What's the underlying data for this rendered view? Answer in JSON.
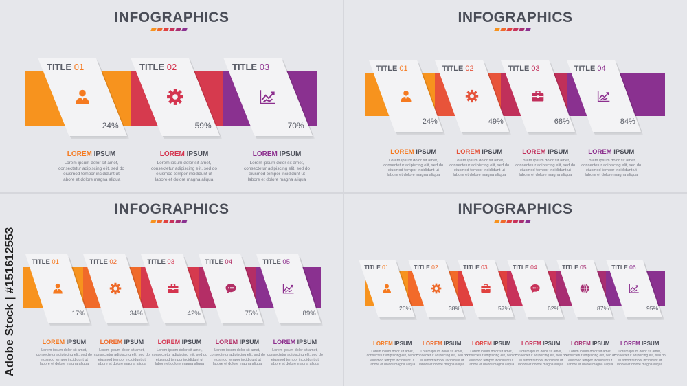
{
  "panels": [
    {
      "title": "INFOGRAPHICS",
      "items": [
        {
          "title": "TITLE",
          "num": "01",
          "pct": "24%",
          "color": "#f7931e",
          "label_color": "#f57a20",
          "icon": "user-icon",
          "label1": "LOREM",
          "label2": "IPSUM",
          "body": "Lorem ipsum dolor sit amet,\nconsectetur adipiscing elit, sed do\neiusmod tempor incididunt ut\nlabore et dolore magna aliqua"
        },
        {
          "title": "TITLE",
          "num": "02",
          "pct": "59%",
          "color": "#d63a4e",
          "label_color": "#d4344f",
          "icon": "gear-icon",
          "label1": "LOREM",
          "label2": "IPSUM",
          "body": "Lorem ipsum dolor sit amet,\nconsectetur adipiscing elit, sed do\neiusmod tempor incididunt ut\nlabore et dolore magna aliqua"
        },
        {
          "title": "TITLE",
          "num": "03",
          "pct": "70%",
          "color": "#8a3190",
          "label_color": "#8c2f8e",
          "icon": "chart-icon",
          "label1": "LOREM",
          "label2": "IPSUM",
          "body": "Lorem ipsum dolor sit amet,\nconsectetur adipiscing elit, sed do\neiusmod tempor incididunt ut\nlabore et dolore magna aliqua"
        }
      ]
    },
    {
      "title": "INFOGRAPHICS",
      "items": [
        {
          "title": "TITLE",
          "num": "01",
          "pct": "24%",
          "color": "#f7931e",
          "label_color": "#f57a20",
          "icon": "user-icon",
          "label1": "LOREM",
          "label2": "IPSUM",
          "body": "Lorem ipsum dolor sit amet,\nconsectetur adipiscing elit, sed do\neiusmod tempor incididunt ut\nlabore et dolore magna aliqua"
        },
        {
          "title": "TITLE",
          "num": "02",
          "pct": "49%",
          "color": "#e8543a",
          "label_color": "#e5533a",
          "icon": "gear-icon",
          "label1": "LOREM",
          "label2": "IPSUM",
          "body": "Lorem ipsum dolor sit amet,\nconsectetur adipiscing elit, sed do\neiusmod tempor incididunt ut\nlabore et dolore magna aliqua"
        },
        {
          "title": "TITLE",
          "num": "03",
          "pct": "68%",
          "color": "#c0305a",
          "label_color": "#c12f5b",
          "icon": "briefcase-icon",
          "label1": "LOREM",
          "label2": "IPSUM",
          "body": "Lorem ipsum dolor sit amet,\nconsectetur adipiscing elit, sed do\neiusmod tempor incididunt ut\nlabore et dolore magna aliqua"
        },
        {
          "title": "TITLE",
          "num": "04",
          "pct": "84%",
          "color": "#8a3190",
          "label_color": "#8c2f8e",
          "icon": "chart-icon",
          "label1": "LOREM",
          "label2": "IPSUM",
          "body": "Lorem ipsum dolor sit amet,\nconsectetur adipiscing elit, sed do\neiusmod tempor incididunt ut\nlabore et dolore magna aliqua"
        }
      ]
    },
    {
      "title": "INFOGRAPHICS",
      "items": [
        {
          "title": "TITLE",
          "num": "01",
          "pct": "17%",
          "color": "#f7931e",
          "label_color": "#f57a20",
          "icon": "user-icon",
          "label1": "LOREM",
          "label2": "IPSUM",
          "body": "Lorem ipsum dolor sit amet,\nconsectetur adipiscing elit, sed do\neiusmod tempor incididunt ut\nlabore et dolore magna aliqua"
        },
        {
          "title": "TITLE",
          "num": "02",
          "pct": "34%",
          "color": "#f06a2a",
          "label_color": "#ee6a2a",
          "icon": "gear-icon",
          "label1": "LOREM",
          "label2": "IPSUM",
          "body": "Lorem ipsum dolor sit amet,\nconsectetur adipiscing elit, sed do\neiusmod tempor incididunt ut\nlabore et dolore magna aliqua"
        },
        {
          "title": "TITLE",
          "num": "03",
          "pct": "42%",
          "color": "#d63a4e",
          "label_color": "#d4344f",
          "icon": "briefcase-icon",
          "label1": "LOREM",
          "label2": "IPSUM",
          "body": "Lorem ipsum dolor sit amet,\nconsectetur adipiscing elit, sed do\neiusmod tempor incididunt ut\nlabore et dolore magna aliqua"
        },
        {
          "title": "TITLE",
          "num": "04",
          "pct": "75%",
          "color": "#b42e66",
          "label_color": "#b22f66",
          "icon": "chat-icon",
          "label1": "LOREM",
          "label2": "IPSUM",
          "body": "Lorem ipsum dolor sit amet,\nconsectetur adipiscing elit, sed do\neiusmod tempor incididunt ut\nlabore et dolore magna aliqua"
        },
        {
          "title": "TITLE",
          "num": "05",
          "pct": "89%",
          "color": "#8a3190",
          "label_color": "#8c2f8e",
          "icon": "chart-icon",
          "label1": "LOREM",
          "label2": "IPSUM",
          "body": "Lorem ipsum dolor sit amet,\nconsectetur adipiscing elit, sed do\neiusmod tempor incididunt ut\nlabore et dolore magna aliqua"
        }
      ]
    },
    {
      "title": "INFOGRAPHICS",
      "items": [
        {
          "title": "TITLE",
          "num": "01",
          "pct": "26%",
          "color": "#f7931e",
          "label_color": "#f57a20",
          "icon": "user-icon",
          "label1": "LOREM",
          "label2": "IPSUM",
          "body": "Lorem ipsum dolor sit amet,\nconsectetur adipiscing elit, sed do\neiusmod tempor incididunt ut\nlabore et dolore magna aliqua"
        },
        {
          "title": "TITLE",
          "num": "02",
          "pct": "38%",
          "color": "#f26a2a",
          "label_color": "#ee6a2a",
          "icon": "gear-icon",
          "label1": "LOREM",
          "label2": "IPSUM",
          "body": "Lorem ipsum dolor sit amet,\nconsectetur adipiscing elit, sed do\neiusmod tempor incididunt ut\nlabore et dolore magna aliqua"
        },
        {
          "title": "TITLE",
          "num": "03",
          "pct": "57%",
          "color": "#e0413f",
          "label_color": "#e0413f",
          "icon": "briefcase-icon",
          "label1": "LOREM",
          "label2": "IPSUM",
          "body": "Lorem ipsum dolor sit amet,\nconsectetur adipiscing elit, sed do\neiusmod tempor incididunt ut\nlabore et dolore magna aliqua"
        },
        {
          "title": "TITLE",
          "num": "04",
          "pct": "62%",
          "color": "#c8325a",
          "label_color": "#c83259",
          "icon": "chat-icon",
          "label1": "LOREM",
          "label2": "IPSUM",
          "body": "Lorem ipsum dolor sit amet,\nconsectetur adipiscing elit, sed do\neiusmod tempor incididunt ut\nlabore et dolore magna aliqua"
        },
        {
          "title": "TITLE",
          "num": "05",
          "pct": "87%",
          "color": "#a82e72",
          "label_color": "#a52e72",
          "icon": "globe-icon",
          "label1": "LOREM",
          "label2": "IPSUM",
          "body": "Lorem ipsum dolor sit amet,\nconsectetur adipiscing elit, sed do\neiusmod tempor incididunt ut\nlabore et dolore magna aliqua"
        },
        {
          "title": "TITLE",
          "num": "06",
          "pct": "95%",
          "color": "#8a3190",
          "label_color": "#8c2f8e",
          "icon": "chart-icon",
          "label1": "LOREM",
          "label2": "IPSUM",
          "body": "Lorem ipsum dolor sit amet,\nconsectetur adipiscing elit, sed do\neiusmod tempor incididunt ut\nlabore et dolore magna aliqua"
        }
      ]
    }
  ],
  "underline_colors": [
    "#f7931e",
    "#f06a2a",
    "#e0413f",
    "#c8325a",
    "#a82e72",
    "#8a3190"
  ],
  "watermark": "Adobe Stock | #151612553"
}
